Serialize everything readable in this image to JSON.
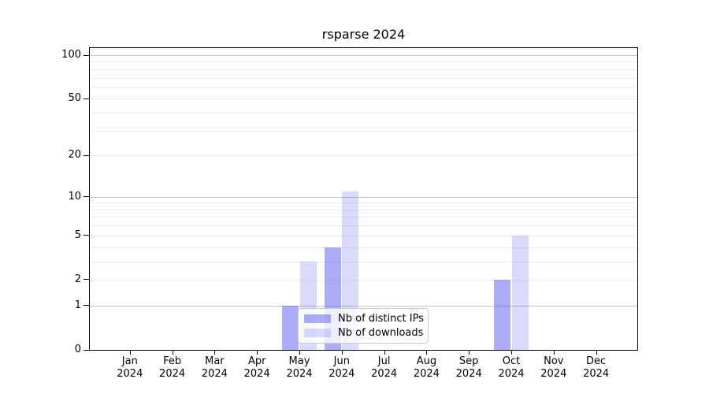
{
  "chart_data": {
    "type": "bar",
    "title": "rsparse 2024",
    "categories": [
      "Jan",
      "Feb",
      "Mar",
      "Apr",
      "May",
      "Jun",
      "Jul",
      "Aug",
      "Sep",
      "Oct",
      "Nov",
      "Dec"
    ],
    "x_tick_year": "2024",
    "series": [
      {
        "name": "Nb of distinct IPs",
        "color": "rgba(87,90,240,0.5)",
        "values": [
          0,
          0,
          0,
          0,
          1,
          4,
          0,
          0,
          0,
          2,
          0,
          0
        ]
      },
      {
        "name": "Nb of downloads",
        "color": "rgba(87,90,240,0.22)",
        "values": [
          0,
          0,
          0,
          0,
          3,
          11,
          0,
          0,
          0,
          5,
          0,
          0
        ]
      }
    ],
    "y_scale": "log1p",
    "ylim": [
      0,
      113
    ],
    "y_tick_values": [
      0,
      1,
      2,
      5,
      10,
      20,
      50,
      100
    ],
    "y_major_gridlines": [
      1,
      10,
      100
    ],
    "y_minor_gridlines": [
      2,
      3,
      4,
      5,
      6,
      7,
      8,
      9,
      20,
      30,
      40,
      50,
      60,
      70,
      80,
      90,
      110
    ],
    "grid": true,
    "legend": {
      "visible": true,
      "position": "lower center-left"
    },
    "colors": {
      "bar_base": "#575af0",
      "major_gridline": "#c3c3c3",
      "minor_gridline": "#ebebeb",
      "axis": "#000000",
      "background": "#ffffff"
    }
  }
}
